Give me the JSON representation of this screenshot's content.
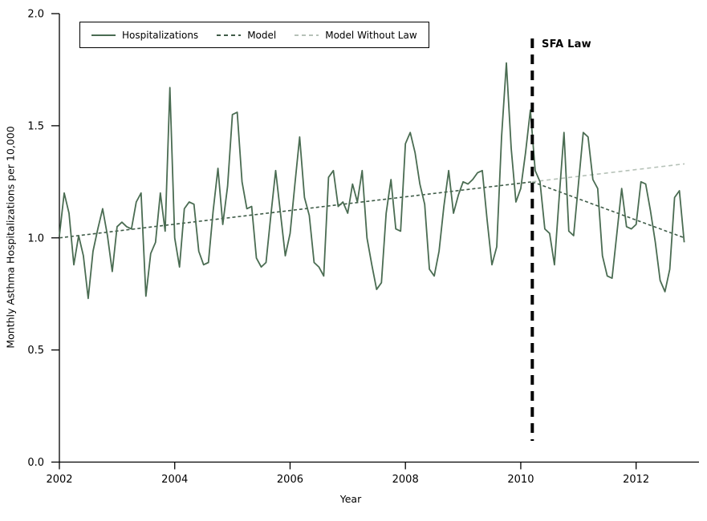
{
  "chart_data": {
    "type": "line",
    "title": "",
    "xlabel": "Year",
    "ylabel": "Monthly Asthma Hospitalizations per 10,000",
    "xlim": [
      2002,
      2013.09
    ],
    "ylim": [
      0,
      2.0
    ],
    "x_ticks": [
      2002,
      2004,
      2006,
      2008,
      2010,
      2012
    ],
    "x_tick_labels": [
      "2002",
      "2004",
      "2006",
      "2008",
      "2010",
      "2012"
    ],
    "y_ticks": [
      0.0,
      0.5,
      1.0,
      1.5,
      2.0
    ],
    "y_tick_labels": [
      "0.0",
      "0.5",
      "1.0",
      "1.5",
      "2.0"
    ],
    "grid": false,
    "legend_position": "top-left-inside",
    "axis_color": "#000000",
    "annotation": {
      "label": "SFA Law",
      "x": 2010.2,
      "style": "dashed",
      "dash": [
        12,
        8
      ],
      "color": "#000000"
    },
    "series": [
      {
        "name": "Hospitalizations",
        "style": "solid",
        "color": "#4a6c52",
        "x_start": 2002.0,
        "cadence": "monthly",
        "values": [
          1.01,
          1.2,
          1.11,
          0.88,
          1.01,
          0.92,
          0.73,
          0.94,
          1.04,
          1.13,
          1.01,
          0.85,
          1.05,
          1.07,
          1.05,
          1.04,
          1.16,
          1.2,
          0.74,
          0.93,
          0.98,
          1.2,
          1.03,
          1.67,
          1.0,
          0.87,
          1.13,
          1.16,
          1.15,
          0.94,
          0.88,
          0.89,
          1.12,
          1.31,
          1.06,
          1.23,
          1.55,
          1.56,
          1.25,
          1.13,
          1.14,
          0.91,
          0.87,
          0.89,
          1.1,
          1.3,
          1.11,
          0.92,
          1.02,
          1.24,
          1.45,
          1.18,
          1.1,
          0.89,
          0.87,
          0.83,
          1.27,
          1.3,
          1.14,
          1.16,
          1.11,
          1.24,
          1.16,
          1.3,
          1.0,
          0.88,
          0.77,
          0.8,
          1.11,
          1.26,
          1.04,
          1.03,
          1.42,
          1.47,
          1.38,
          1.24,
          1.15,
          0.86,
          0.83,
          0.94,
          1.14,
          1.3,
          1.11,
          1.19,
          1.25,
          1.24,
          1.26,
          1.29,
          1.3,
          1.08,
          0.88,
          0.96,
          1.45,
          1.78,
          1.4,
          1.16,
          1.22,
          1.38,
          1.57,
          1.3,
          1.25,
          1.04,
          1.02,
          0.88,
          1.18,
          1.47,
          1.03,
          1.01,
          1.24,
          1.47,
          1.45,
          1.26,
          1.22,
          0.92,
          0.83,
          0.82,
          1.02,
          1.22,
          1.05,
          1.04,
          1.06,
          1.25,
          1.24,
          1.12,
          0.98,
          0.81,
          0.76,
          0.86,
          1.18,
          1.21,
          0.98
        ]
      },
      {
        "name": "Model",
        "style": "dashed",
        "dash": [
          4,
          3
        ],
        "color": "#3f5c48",
        "segments": [
          {
            "x1": 2002.0,
            "y1": 1.0,
            "x2": 2010.2,
            "y2": 1.25
          },
          {
            "x1": 2010.2,
            "y1": 1.25,
            "x2": 2012.84,
            "y2": 1.0
          }
        ]
      },
      {
        "name": "Model Without Law",
        "style": "dashed",
        "dash": [
          5,
          4
        ],
        "color": "#b6c2b8",
        "segments": [
          {
            "x1": 2010.2,
            "y1": 1.25,
            "x2": 2012.84,
            "y2": 1.33
          }
        ]
      }
    ]
  }
}
